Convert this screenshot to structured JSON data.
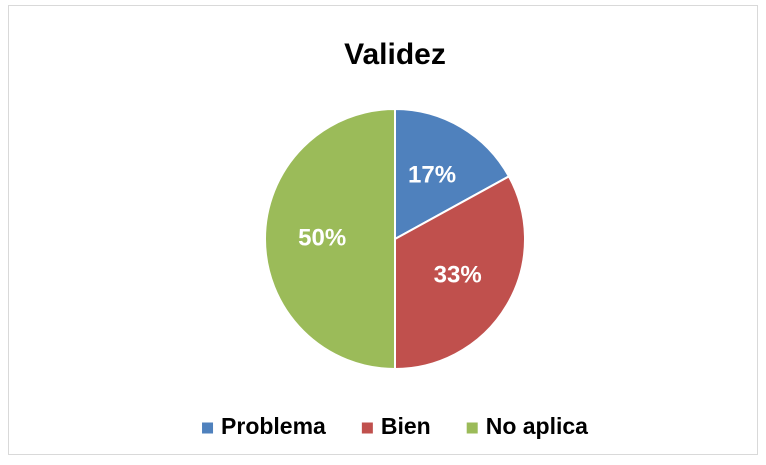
{
  "chart_data": {
    "type": "pie",
    "title": "Validez",
    "categories": [
      "Problema",
      "Bien",
      "No aplica"
    ],
    "values": [
      17,
      33,
      50
    ],
    "value_labels": [
      "17%",
      "33%",
      "50%"
    ],
    "colors": [
      "#4f81bd",
      "#c0504d",
      "#9bbb59"
    ],
    "legend": "bottom"
  }
}
